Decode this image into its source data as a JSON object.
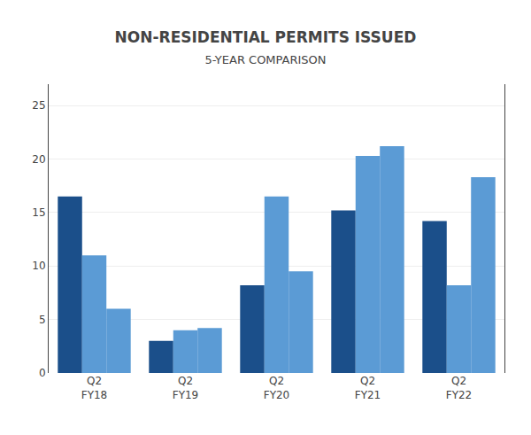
{
  "chart_data": {
    "type": "bar",
    "title": "NON-RESIDENTIAL PERMITS ISSUED",
    "subtitle": "5-YEAR COMPARISON",
    "categories": [
      "Q2\nFY18",
      "Q2\nFY19",
      "Q2\nFY20",
      "Q2\nFY21",
      "Q2\nFY22"
    ],
    "series": [
      {
        "color": "#1b4f8a",
        "values": [
          16.5,
          3.0,
          8.2,
          15.2,
          14.2
        ]
      },
      {
        "color": "#5b9bd5",
        "values": [
          11.0,
          4.0,
          16.5,
          20.3,
          8.2
        ]
      },
      {
        "color": "#5b9bd5",
        "values": [
          6.0,
          4.2,
          9.5,
          21.2,
          18.3
        ]
      }
    ],
    "ylim": [
      0,
      27
    ],
    "yticks": [
      0,
      5,
      10,
      15,
      20,
      25
    ],
    "grid": true
  }
}
